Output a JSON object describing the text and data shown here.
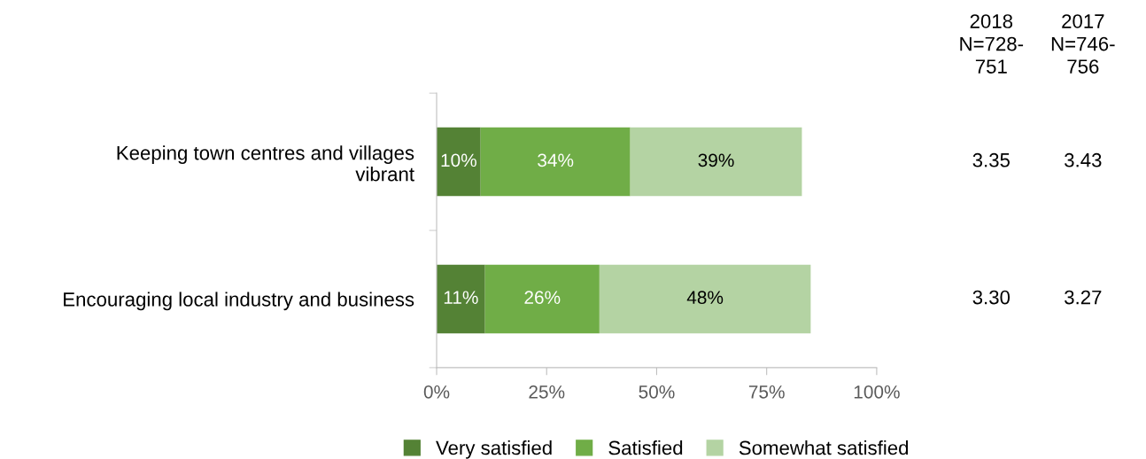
{
  "chart_data": {
    "type": "bar",
    "orientation": "horizontal",
    "stacked": true,
    "categories": [
      "Keeping town centres and villages\nvibrant",
      "Encouraging local industry and business"
    ],
    "series": [
      {
        "name": "Very satisfied",
        "color": "#548235",
        "values": [
          10,
          11
        ],
        "value_labels": [
          "10%",
          "11%"
        ]
      },
      {
        "name": "Satisfied",
        "color": "#70ad47",
        "values": [
          34,
          26
        ],
        "value_labels": [
          "34%",
          "26%"
        ]
      },
      {
        "name": "Somewhat satisfied",
        "color": "#b4d3a3",
        "values": [
          39,
          48
        ],
        "value_labels": [
          "39%",
          "48%"
        ]
      }
    ],
    "xlim": [
      0,
      100
    ],
    "xticks": [
      {
        "value": 0,
        "label": "0%"
      },
      {
        "value": 25,
        "label": "25%"
      },
      {
        "value": 50,
        "label": "50%"
      },
      {
        "value": 75,
        "label": "75%"
      },
      {
        "value": 100,
        "label": "100%"
      }
    ],
    "grid": false,
    "legend": "bottom",
    "annotations": [
      "2018\nN=728-\n751",
      "2017\nN=746-\n756",
      "3.35",
      "3.43",
      "3.30",
      "3.27"
    ]
  }
}
